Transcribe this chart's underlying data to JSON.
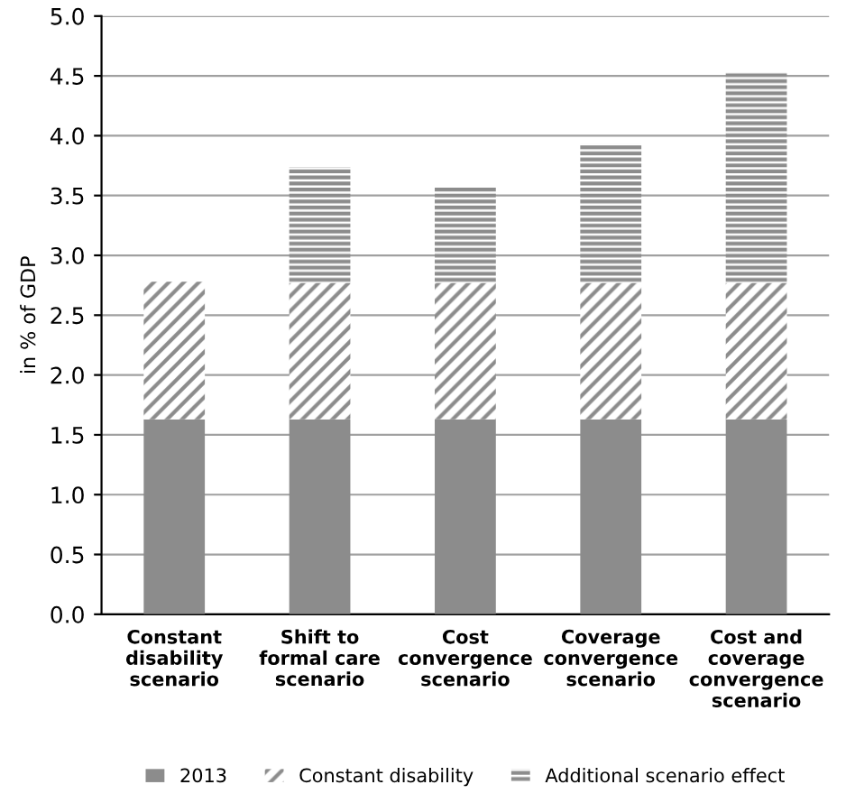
{
  "chart_data": {
    "type": "bar",
    "stacked": true,
    "ylabel": "in % of GDP",
    "categories": [
      "Constant\ndisability\nscenario",
      "Shift to\nformal care\nscenario",
      "Cost\nconvergence\nscenario",
      "Coverage\nconvergence\nscenario",
      "Cost and\ncoverage\nconvergence\nscenario"
    ],
    "series": [
      {
        "name": "2013",
        "color": "#8c8c8c",
        "values": [
          1.63,
          1.63,
          1.63,
          1.63,
          1.63
        ]
      },
      {
        "name": "Constant disability",
        "color": "#8c8c8c",
        "values": [
          1.15,
          1.14,
          1.14,
          1.14,
          1.14
        ]
      },
      {
        "name": "Additional scenario effect",
        "color": "#8c8c8c",
        "values": [
          null,
          0.97,
          0.8,
          1.16,
          1.76
        ]
      }
    ],
    "ylim": [
      0,
      5
    ],
    "yticks": [
      {
        "value": 0,
        "label": "0.0"
      },
      0.5,
      {
        "value": 1,
        "label": "1.0"
      },
      1.5,
      {
        "value": 2,
        "label": "2.0"
      },
      2.5,
      {
        "value": 3,
        "label": "3.0"
      },
      3.5,
      {
        "value": 4,
        "label": "4.0"
      },
      4.5,
      {
        "value": 5,
        "label": "5.0"
      }
    ],
    "grid": "y",
    "legend": "bottom"
  }
}
